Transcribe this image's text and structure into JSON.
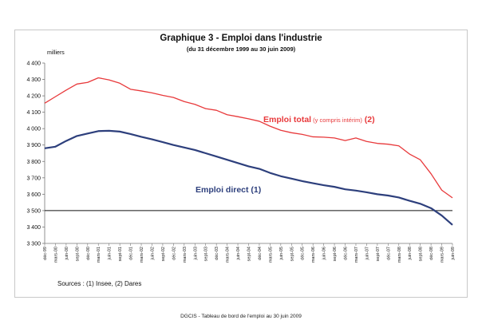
{
  "page": {
    "footer": "DGCIS - Tableau de bord de l'emploi au 30 juin 2009",
    "sources": "Sources : (1) Insee, (2) Dares"
  },
  "chart_data": {
    "type": "line",
    "title": "Graphique 3 - Emploi dans l'industrie",
    "subtitle": "(du 31 décembre 1999 au 30 juin 2009)",
    "ylabel": "milliers",
    "xlabel": "",
    "ylim": [
      3300,
      4400
    ],
    "yticks": [
      3300,
      3400,
      3500,
      3600,
      3700,
      3800,
      3900,
      4000,
      4100,
      4200,
      4300,
      4400
    ],
    "ytick_labels": [
      "3 300",
      "3 400",
      "3 500",
      "3 600",
      "3 700",
      "3 800",
      "3 900",
      "4 000",
      "4 100",
      "4 200",
      "4 300",
      "4 400"
    ],
    "grid": false,
    "reference_line": 3500,
    "categories": [
      "déc-99",
      "mars-00",
      "juin-00",
      "sept-00",
      "déc-00",
      "mars-01",
      "juin-01",
      "sept-01",
      "déc-01",
      "mars-02",
      "juin-02",
      "sept-02",
      "déc-02",
      "mars-03",
      "juin-03",
      "sept-03",
      "déc-03",
      "mars-04",
      "juin-04",
      "sept-04",
      "déc-04",
      "mars-05",
      "juin-05",
      "sept-05",
      "déc-05",
      "mars-06",
      "juin-06",
      "sept-06",
      "déc-06",
      "mars-07",
      "juin-07",
      "sept-07",
      "déc-07",
      "mars-08",
      "juin-08",
      "sept-08",
      "déc-08",
      "mars-09",
      "juin-09"
    ],
    "series": [
      {
        "name": "Emploi total (y compris intérim) (2)",
        "label_main": "Emploi total",
        "label_note": "(y compris intérim)",
        "label_ref": "(2)",
        "color": "#e8393b",
        "values": [
          4155,
          4195,
          4235,
          4272,
          4282,
          4310,
          4297,
          4277,
          4240,
          4230,
          4218,
          4203,
          4190,
          4165,
          4148,
          4122,
          4112,
          4085,
          4073,
          4060,
          4045,
          4015,
          3990,
          3975,
          3965,
          3950,
          3948,
          3943,
          3927,
          3943,
          3922,
          3910,
          3905,
          3895,
          3845,
          3810,
          3725,
          3625,
          3578
        ]
      },
      {
        "name": "Emploi direct (1)",
        "label_main": "Emploi direct (1)",
        "color": "#2d3f7c",
        "values": [
          3880,
          3890,
          3925,
          3955,
          3970,
          3985,
          3987,
          3982,
          3967,
          3950,
          3935,
          3918,
          3900,
          3885,
          3870,
          3850,
          3830,
          3810,
          3790,
          3770,
          3755,
          3730,
          3710,
          3695,
          3680,
          3667,
          3655,
          3645,
          3630,
          3622,
          3612,
          3600,
          3592,
          3580,
          3560,
          3542,
          3515,
          3470,
          3413
        ]
      }
    ]
  }
}
